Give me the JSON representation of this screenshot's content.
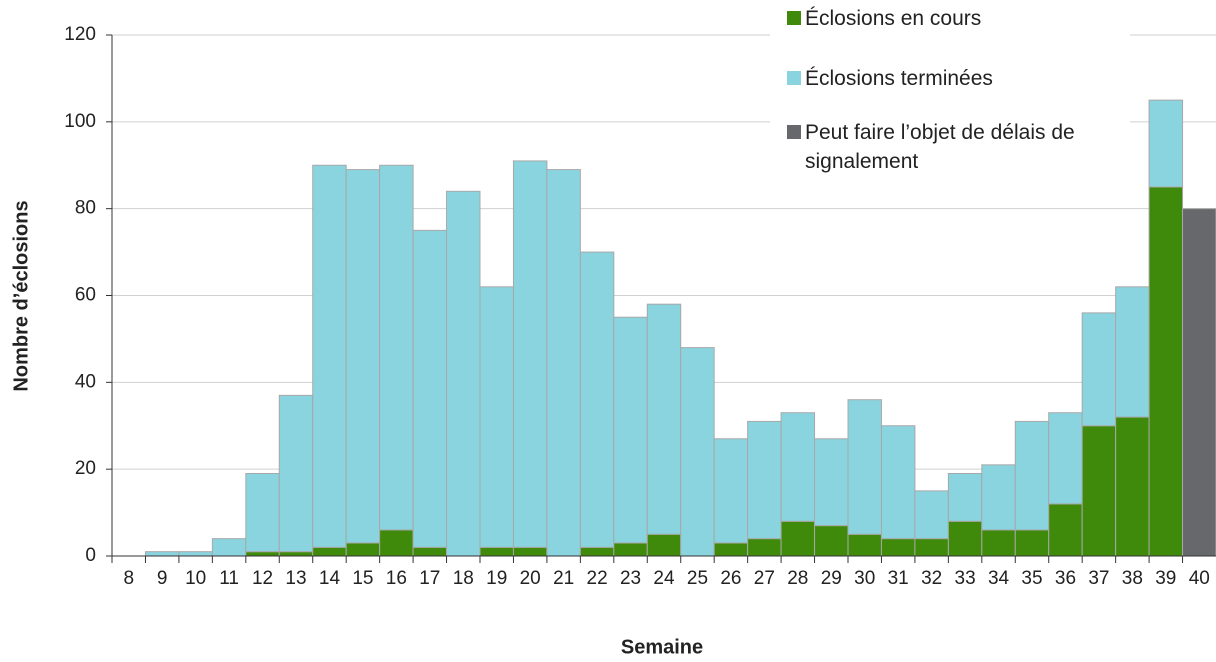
{
  "chart_data": {
    "type": "stacked_bar",
    "x_label": "Semaine",
    "y_label": "Nombre d’éclosions",
    "categories": [
      "8",
      "9",
      "10",
      "11",
      "12",
      "13",
      "14",
      "15",
      "16",
      "17",
      "18",
      "19",
      "20",
      "21",
      "22",
      "23",
      "24",
      "25",
      "26",
      "27",
      "28",
      "29",
      "30",
      "31",
      "32",
      "33",
      "34",
      "35",
      "36",
      "37",
      "38",
      "39",
      "40"
    ],
    "series": [
      {
        "name": "Éclosions en cours",
        "color": "#3f8a0a",
        "values": [
          null,
          0,
          0,
          0,
          1,
          1,
          2,
          3,
          6,
          2,
          0,
          2,
          2,
          0,
          2,
          3,
          5,
          0,
          3,
          4,
          8,
          7,
          5,
          4,
          4,
          8,
          6,
          6,
          12,
          30,
          32,
          85,
          null
        ]
      },
      {
        "name": "Éclosions terminées",
        "color": "#8ad4e0",
        "values": [
          null,
          1,
          1,
          4,
          18,
          36,
          88,
          86,
          84,
          73,
          84,
          60,
          89,
          89,
          68,
          52,
          53,
          48,
          24,
          27,
          25,
          20,
          31,
          26,
          11,
          11,
          15,
          25,
          21,
          26,
          30,
          20,
          null
        ]
      },
      {
        "name": "Peut faire l’objet de délais de signalement",
        "color": "#67686b",
        "values": [
          null,
          null,
          null,
          null,
          null,
          null,
          null,
          null,
          null,
          null,
          null,
          null,
          null,
          null,
          null,
          null,
          null,
          null,
          null,
          null,
          null,
          null,
          null,
          null,
          null,
          null,
          null,
          null,
          null,
          null,
          null,
          null,
          80
        ]
      }
    ],
    "ylim": [
      0,
      120
    ],
    "yticks": [
      0,
      20,
      40,
      60,
      80,
      100,
      120
    ],
    "grid": true
  }
}
